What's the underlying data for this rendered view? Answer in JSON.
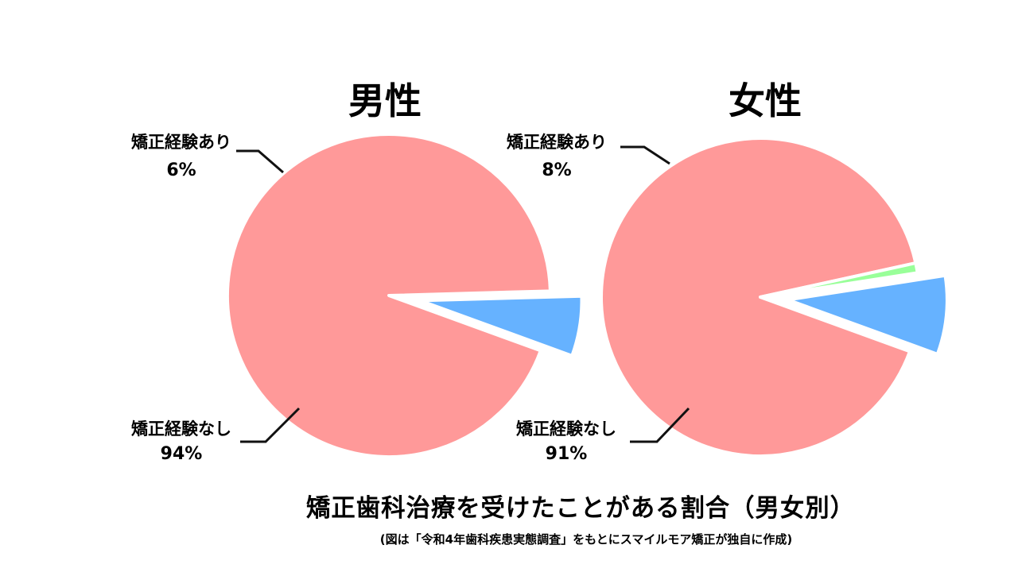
{
  "chart_data": [
    {
      "type": "pie",
      "title": "男性",
      "slices": [
        {
          "label": "矯正経験あり",
          "value": 6,
          "value_label": "6%",
          "color": "#66b2ff",
          "exploded": true
        },
        {
          "label": "矯正経験なし",
          "value": 94,
          "value_label": "94%",
          "color": "#ff9999",
          "exploded": false
        }
      ]
    },
    {
      "type": "pie",
      "title": "女性",
      "slices": [
        {
          "label": "矯正経験あり",
          "value": 8,
          "value_label": "8%",
          "color": "#66b2ff",
          "exploded": true
        },
        {
          "label": "矯正経験なし",
          "value": 91,
          "value_label": "91%",
          "color": "#ff9999",
          "exploded": false
        },
        {
          "label": "",
          "value": 1,
          "value_label": "",
          "color": "#99ff99",
          "exploded": false
        }
      ]
    }
  ],
  "footer": {
    "title": "矯正歯科治療を受けたことがある割合（男女別）",
    "note": "(図は「令和4年歯科疾患実態調査」をもとにスマイルモア矯正が独自に作成)"
  },
  "colors": {
    "yes": "#66b2ff",
    "no": "#ff9999",
    "other": "#99ff99",
    "background": "#ffffff"
  }
}
